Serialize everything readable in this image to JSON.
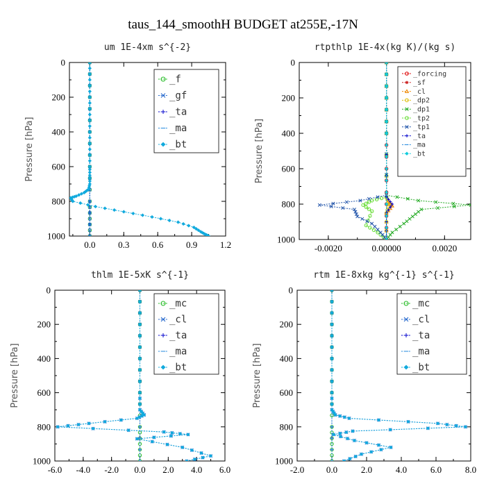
{
  "figure": {
    "title": "taus_144_smoothH  BUDGET at255E,-17N"
  },
  "chart_data": [
    {
      "type": "line",
      "title": "um  1E-4xm s^{-2}",
      "ylabel": "Pressure [hPa]",
      "xlim": [
        -0.18,
        1.2
      ],
      "ylim": [
        1000,
        0
      ],
      "xticks": [
        "0.0",
        "0.3",
        "0.6",
        "0.9",
        "1.2"
      ],
      "xtick_values": [
        0.0,
        0.3,
        0.6,
        0.9,
        1.2
      ],
      "yticks": [
        "0",
        "200",
        "400",
        "600",
        "800",
        "1000"
      ],
      "ytick_values": [
        0,
        200,
        400,
        600,
        800,
        1000
      ],
      "legend_placement": "top-right",
      "series": [
        {
          "name": "_f",
          "color": "#22bb22",
          "marker": "circle",
          "x": [
            0.0,
            0.0,
            0.0,
            0.0,
            0.0,
            0.0,
            0.0
          ],
          "y": [
            0,
            200,
            400,
            600,
            800,
            900,
            1000
          ]
        },
        {
          "name": "_gf",
          "color": "#2266cc",
          "marker": "x",
          "x": [
            0.0,
            0.0,
            0.0,
            0.0,
            0.0,
            0.0,
            0.0
          ],
          "y": [
            0,
            200,
            400,
            600,
            800,
            900,
            1000
          ]
        },
        {
          "name": "_ta",
          "color": "#0000cc",
          "marker": "plus",
          "x": [
            0.0,
            0.0,
            0.0,
            0.0
          ],
          "y": [
            0,
            400,
            800,
            1000
          ]
        },
        {
          "name": "_ma",
          "color": "#2288dd",
          "marker": "dash",
          "x": [
            0.0,
            0.0,
            0.0,
            0.0
          ],
          "y": [
            0,
            400,
            800,
            1000
          ]
        },
        {
          "name": "_bt",
          "color": "#11aadd",
          "marker": "diamond",
          "x": [
            0.0,
            0.0,
            0.0,
            0.0,
            0.0,
            0.0,
            0.0,
            0.0,
            0.0,
            -0.01,
            -0.05,
            -0.12,
            -0.17,
            -0.15,
            0.05,
            0.3,
            0.55,
            0.78,
            0.92,
            0.98,
            1.02,
            1.05
          ],
          "y": [
            0,
            100,
            200,
            300,
            400,
            500,
            600,
            650,
            700,
            730,
            750,
            770,
            780,
            800,
            830,
            860,
            890,
            920,
            950,
            975,
            990,
            1000
          ]
        }
      ]
    },
    {
      "type": "line",
      "title": "rtpthlp  1E-4x(kg K)/(kg s)",
      "ylabel": "Pressure [hPa]",
      "xlim": [
        -0.003,
        0.0029
      ],
      "ylim": [
        1000,
        0
      ],
      "xticks": [
        "-0.0020",
        "0.00000",
        "0.0020"
      ],
      "xtick_values": [
        -0.002,
        0.0,
        0.002
      ],
      "yticks": [
        "0",
        "200",
        "400",
        "600",
        "800",
        "1000"
      ],
      "ytick_values": [
        0,
        200,
        400,
        600,
        800,
        1000
      ],
      "legend_placement": "top-right",
      "series": [
        {
          "name": "_forcing",
          "color": "#dd0000",
          "marker": "circle",
          "x": [
            0.0,
            0.0,
            0.0,
            0.0,
            0.0,
            0.0
          ],
          "y": [
            0,
            200,
            400,
            600,
            800,
            1000
          ]
        },
        {
          "name": "_sf",
          "color": "#cc2222",
          "marker": "star",
          "x": [
            0.0,
            0.0,
            0.0,
            0.0,
            0.0,
            0.0
          ],
          "y": [
            0,
            200,
            400,
            600,
            800,
            1000
          ]
        },
        {
          "name": "_cl",
          "color": "#ee8800",
          "marker": "triangle",
          "x": [
            0.0,
            0.0,
            0.0,
            0.0,
            0.0001,
            0.0002,
            0.0,
            0.0
          ],
          "y": [
            0,
            200,
            400,
            760,
            790,
            810,
            850,
            1000
          ]
        },
        {
          "name": "_dp2",
          "color": "#ddbb00",
          "marker": "circle",
          "x": [
            0.0,
            0.0,
            0.0,
            0.0,
            0.0001,
            0.0,
            0.0
          ],
          "y": [
            0,
            200,
            400,
            760,
            800,
            850,
            1000
          ]
        },
        {
          "name": "_dp1",
          "color": "#22aa22",
          "marker": "x",
          "x": [
            0.0,
            0.0,
            0.0,
            0.0,
            0.0011,
            0.0029,
            0.0012,
            0.0009,
            0.0006,
            0.0002,
            0.0
          ],
          "y": [
            0,
            200,
            400,
            750,
            780,
            805,
            830,
            870,
            910,
            960,
            1000
          ]
        },
        {
          "name": "_tp2",
          "color": "#66dd33",
          "marker": "circle",
          "x": [
            0.0,
            0.0,
            0.0,
            0.0,
            -0.0005,
            -0.0008,
            -0.0005,
            -0.0007,
            -0.0003,
            0.0
          ],
          "y": [
            0,
            200,
            400,
            760,
            780,
            805,
            840,
            920,
            960,
            1000
          ]
        },
        {
          "name": "_tp1",
          "color": "#2255aa",
          "marker": "x",
          "x": [
            0.0,
            0.0,
            0.0,
            0.0,
            -0.0009,
            -0.0023,
            -0.0011,
            -0.001,
            -0.0005,
            -0.0002,
            0.0
          ],
          "y": [
            0,
            200,
            400,
            750,
            780,
            805,
            830,
            870,
            910,
            960,
            1000
          ]
        },
        {
          "name": "_ta",
          "color": "#0000cc",
          "marker": "plus",
          "x": [
            0.0,
            0.0,
            0.0,
            0.0,
            0.0002,
            0.0,
            0.0
          ],
          "y": [
            0,
            200,
            400,
            760,
            800,
            850,
            1000
          ]
        },
        {
          "name": "_ma",
          "color": "#2288dd",
          "marker": "dash",
          "x": [
            0.0,
            0.0,
            0.0,
            0.0,
            0.0
          ],
          "y": [
            0,
            200,
            400,
            800,
            1000
          ]
        },
        {
          "name": "_bt",
          "color": "#11ccdd",
          "marker": "diamond",
          "x": [
            0.0,
            0.0,
            0.0,
            0.0,
            0.0,
            0.0
          ],
          "y": [
            0,
            200,
            400,
            600,
            800,
            1000
          ]
        }
      ]
    },
    {
      "type": "line",
      "title": "thlm  1E-5xK s^{-1}",
      "ylabel": "Pressure [hPa]",
      "xlim": [
        -6.0,
        6.0
      ],
      "ylim": [
        1000,
        0
      ],
      "xticks": [
        "-6.0",
        "-4.0",
        "-2.0",
        "0.0",
        "2.0",
        "4.0",
        "6.0"
      ],
      "xtick_values": [
        -6.0,
        -4.0,
        -2.0,
        0.0,
        2.0,
        4.0,
        6.0
      ],
      "yticks": [
        "0",
        "200",
        "400",
        "600",
        "800",
        "1000"
      ],
      "ytick_values": [
        0,
        200,
        400,
        600,
        800,
        1000
      ],
      "legend_placement": "top-right",
      "series": [
        {
          "name": "_mc",
          "color": "#22bb22",
          "marker": "circle",
          "x": [
            0.0,
            0.0,
            0.0,
            0.0,
            0.0,
            0.0,
            0.0
          ],
          "y": [
            0,
            200,
            400,
            600,
            800,
            900,
            1000
          ]
        },
        {
          "name": "_cl",
          "color": "#2266cc",
          "marker": "x",
          "x": [
            0.0,
            0.0,
            0.0,
            0.0,
            0.0,
            0.3,
            -0.2,
            -3.6,
            -5.8,
            1.7,
            3.4,
            -0.2,
            3.0,
            5.0,
            3.3
          ],
          "y": [
            0,
            200,
            400,
            600,
            700,
            730,
            750,
            780,
            800,
            830,
            845,
            870,
            920,
            970,
            1000
          ]
        },
        {
          "name": "_ta",
          "color": "#0000cc",
          "marker": "plus",
          "x": [
            0.0,
            0.0,
            0.0,
            0.0
          ],
          "y": [
            0,
            400,
            800,
            1000
          ]
        },
        {
          "name": "_ma",
          "color": "#2288dd",
          "marker": "dash",
          "x": [
            0.0,
            0.0,
            0.0,
            0.0
          ],
          "y": [
            0,
            400,
            800,
            1000
          ]
        },
        {
          "name": "_bt",
          "color": "#11aadd",
          "marker": "diamond",
          "x": [
            0.0,
            0.0,
            0.0,
            0.0,
            0.0,
            0.3,
            -0.2,
            -3.6,
            -5.8,
            1.7,
            3.4,
            -0.2,
            3.0,
            5.0,
            3.3
          ],
          "y": [
            0,
            200,
            400,
            600,
            700,
            730,
            750,
            780,
            800,
            830,
            845,
            870,
            920,
            970,
            1000
          ]
        }
      ]
    },
    {
      "type": "line",
      "title": "rtm  1E-8xkg kg^{-1} s^{-1}",
      "ylabel": "Pressure [hPa]",
      "xlim": [
        -2.0,
        8.0
      ],
      "ylim": [
        1000,
        0
      ],
      "xticks": [
        "-2.0",
        "0.0",
        "2.0",
        "4.0",
        "6.0",
        "8.0"
      ],
      "xtick_values": [
        -2.0,
        0.0,
        2.0,
        4.0,
        6.0,
        8.0
      ],
      "yticks": [
        "0",
        "200",
        "400",
        "600",
        "800",
        "1000"
      ],
      "ytick_values": [
        0,
        200,
        400,
        600,
        800,
        1000
      ],
      "legend_placement": "top-right",
      "series": [
        {
          "name": "_mc",
          "color": "#22bb22",
          "marker": "circle",
          "x": [
            0.0,
            0.0,
            0.0,
            0.0,
            0.0,
            0.0,
            0.0
          ],
          "y": [
            0,
            200,
            400,
            600,
            800,
            900,
            1000
          ]
        },
        {
          "name": "_cl",
          "color": "#2266cc",
          "marker": "x",
          "x": [
            0.0,
            0.0,
            0.0,
            0.0,
            0.0,
            0.2,
            1.0,
            6.1,
            7.7,
            1.2,
            0.1,
            1.3,
            3.4,
            1.7,
            0.7
          ],
          "y": [
            0,
            200,
            400,
            600,
            700,
            730,
            750,
            780,
            800,
            825,
            845,
            880,
            920,
            960,
            1000
          ]
        },
        {
          "name": "_ta",
          "color": "#0000cc",
          "marker": "plus",
          "x": [
            0.0,
            0.0,
            0.0,
            0.0
          ],
          "y": [
            0,
            400,
            800,
            1000
          ]
        },
        {
          "name": "_ma",
          "color": "#2288dd",
          "marker": "dash",
          "x": [
            0.0,
            0.0,
            0.0,
            0.0
          ],
          "y": [
            0,
            400,
            800,
            1000
          ]
        },
        {
          "name": "_bt",
          "color": "#11aadd",
          "marker": "diamond",
          "x": [
            0.0,
            0.0,
            0.0,
            0.0,
            0.0,
            0.2,
            1.0,
            6.1,
            7.7,
            1.2,
            0.1,
            1.3,
            3.4,
            1.7,
            0.7
          ],
          "y": [
            0,
            200,
            400,
            600,
            700,
            730,
            750,
            780,
            800,
            825,
            845,
            880,
            920,
            960,
            1000
          ]
        }
      ]
    }
  ]
}
